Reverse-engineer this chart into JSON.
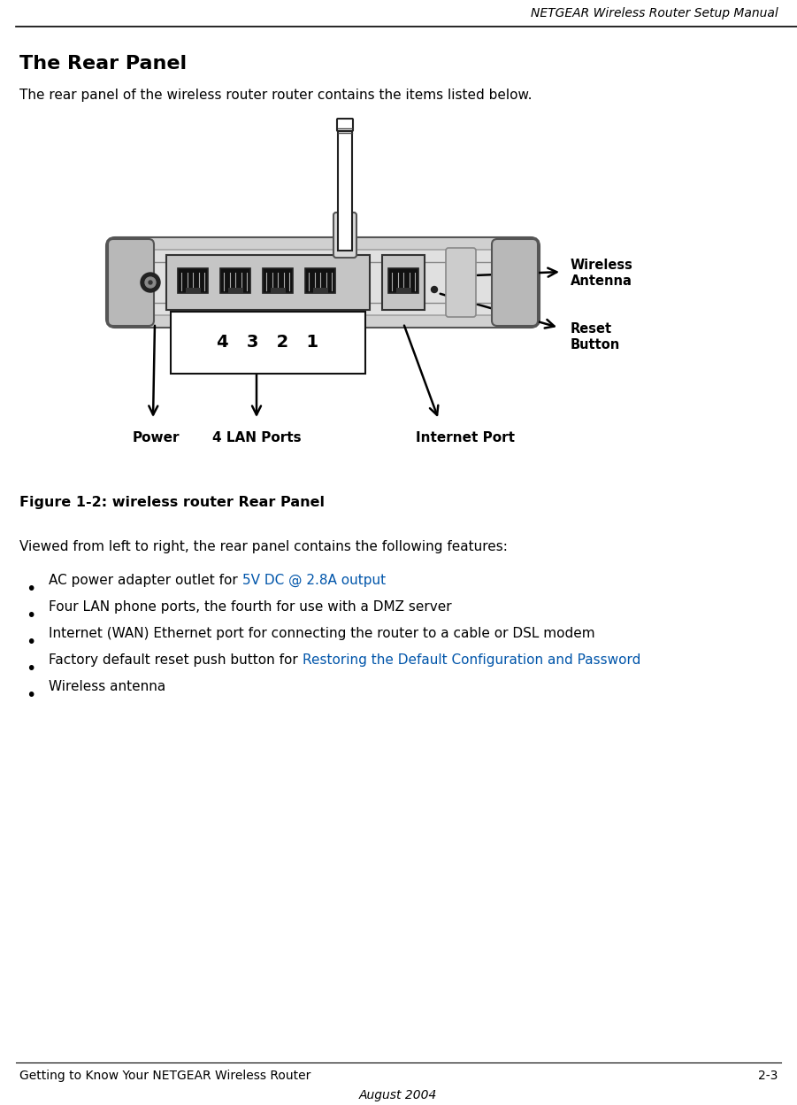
{
  "header_text": "NETGEAR Wireless Router Setup Manual",
  "title": "The Rear Panel",
  "intro_text": "The rear panel of the wireless router router contains the items listed below.",
  "figure_caption": "Figure 1-2: wireless router Rear Panel",
  "viewed_text": "Viewed from left to right, the rear panel contains the following features:",
  "bullet_items": [
    {
      "text": "AC power adapter outlet for ",
      "highlight": "5V DC @ 2.8A output"
    },
    {
      "text": "Four LAN phone ports, the fourth for use with a DMZ server",
      "highlight": ""
    },
    {
      "text": "Internet (WAN) Ethernet port for connecting the router to a cable or DSL modem",
      "highlight": ""
    },
    {
      "text": "Factory default reset push button for ",
      "highlight": "Restoring the Default Configuration and Password"
    },
    {
      "text": "Wireless antenna",
      "highlight": ""
    }
  ],
  "footer_left": "Getting to Know Your NETGEAR Wireless Router",
  "footer_right": "2-3",
  "footer_center": "August 2004",
  "highlight_color": "#0055aa",
  "bg_color": "#ffffff",
  "text_color": "#000000",
  "router_body_color": "#d0d0d0",
  "router_edge_color": "#888888",
  "router_cap_color": "#c0c0c0",
  "port_bg_color": "#c8c8c8",
  "port_black": "#111111",
  "port_lines": "#666666"
}
